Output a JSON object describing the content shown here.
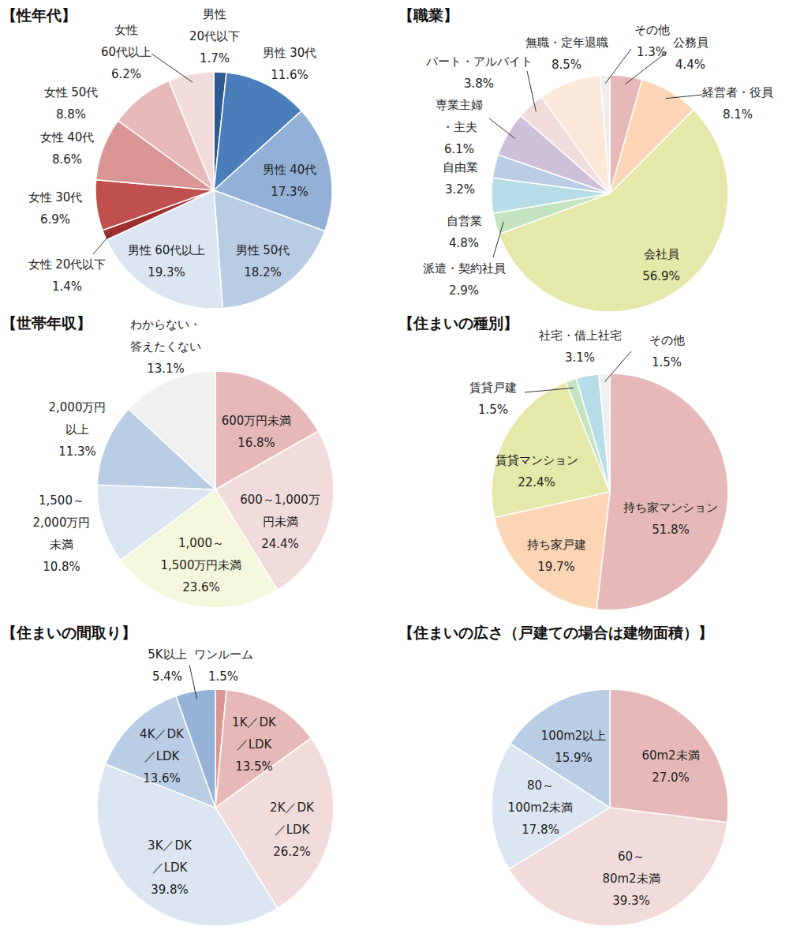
{
  "chart_data": [
    {
      "type": "pie",
      "title": "【性年代】",
      "categories": [
        "男性\n20代以下",
        "男性 30代",
        "男性 40代",
        "男性 50代",
        "男性 60代以上",
        "女性 20代以下",
        "女性 30代",
        "女性 40代",
        "女性 50代",
        "女性\n60代以上"
      ],
      "values": [
        1.7,
        11.6,
        17.3,
        18.2,
        19.3,
        1.4,
        6.9,
        8.6,
        8.8,
        6.2
      ],
      "value_labels": [
        "1.7%",
        "11.6%",
        "17.3%",
        "18.2%",
        "19.3%",
        "1.4%",
        "6.9%",
        "8.6%",
        "8.8%",
        "6.2%"
      ],
      "colors": [
        "#2f5a8f",
        "#4a7ebb",
        "#93b0d6",
        "#b8cce4",
        "#dce6f2",
        "#a03030",
        "#c0504d",
        "#d99694",
        "#e6b9b8",
        "#f2dcdb"
      ],
      "data_labels": true
    },
    {
      "type": "pie",
      "title": "【職業】",
      "categories": [
        "公務員",
        "経営者・役員",
        "会社員",
        "派遣・契約社員",
        "自営業",
        "自由業",
        "専業主婦\n・主夫",
        "パート・アルバイト",
        "無職・定年退職",
        "その他"
      ],
      "values": [
        4.4,
        8.1,
        56.9,
        2.9,
        4.8,
        3.2,
        6.1,
        3.8,
        8.5,
        1.3
      ],
      "value_labels": [
        "4.4%",
        "8.1%",
        "56.9%",
        "2.9%",
        "4.8%",
        "3.2%",
        "6.1%",
        "3.8%",
        "8.5%",
        "1.3%"
      ],
      "colors": [
        "#e6b9b8",
        "#fcd5b5",
        "#e4e8a8",
        "#c4e4c0",
        "#b7dde8",
        "#b9cde5",
        "#ccc0da",
        "#f2dcdb",
        "#fde9d9",
        "#eeeeee"
      ],
      "data_labels": true
    },
    {
      "type": "pie",
      "title": "【世帯年収】",
      "categories": [
        "600万円未満",
        "600～1,000万\n円未満",
        "1,000～\n1,500万円未満",
        "1,500～\n2,000万円\n未満",
        "2,000万円\n以上",
        "わからない・\n答えたくない"
      ],
      "values": [
        16.8,
        24.4,
        23.6,
        10.8,
        11.3,
        13.1
      ],
      "value_labels": [
        "16.8%",
        "24.4%",
        "23.6%",
        "10.8%",
        "11.3%",
        "13.1%"
      ],
      "colors": [
        "#e6b9b8",
        "#f2dcdb",
        "#f5f7dc",
        "#dce6f2",
        "#b9cde5",
        "#f0f0f0"
      ],
      "data_labels": true
    },
    {
      "type": "pie",
      "title": "【住まいの種別】",
      "categories": [
        "持ち家マンション",
        "持ち家戸建",
        "賃貸マンション",
        "賃貸戸建",
        "社宅・借上社宅",
        "その他"
      ],
      "values": [
        51.8,
        19.7,
        22.4,
        1.5,
        3.1,
        1.5
      ],
      "value_labels": [
        "51.8%",
        "19.7%",
        "22.4%",
        "1.5%",
        "3.1%",
        "1.5%"
      ],
      "colors": [
        "#e6b9b8",
        "#fcd5b5",
        "#e4e8a8",
        "#c4e4c0",
        "#b7dde8",
        "#f0f0f0"
      ],
      "data_labels": true
    },
    {
      "type": "pie",
      "title": "【住まいの間取り】",
      "categories": [
        "ワンルーム",
        "1K／DK\n／LDK",
        "2K／DK\n／LDK",
        "3K／DK\n／LDK",
        "4K／DK\n／LDK",
        "5K以上"
      ],
      "values": [
        1.5,
        13.5,
        26.2,
        39.8,
        13.6,
        5.4
      ],
      "value_labels": [
        "1.5%",
        "13.5%",
        "26.2%",
        "39.8%",
        "13.6%",
        "5.4%"
      ],
      "colors": [
        "#d99694",
        "#e6b9b8",
        "#f2dcdb",
        "#dce6f2",
        "#b9cde5",
        "#95b3d7"
      ],
      "data_labels": true
    },
    {
      "type": "pie",
      "title": "【住まいの広さ（戸建ての場合は建物面積）】",
      "categories": [
        "60m2未満",
        "60～\n80m2未満",
        "80～\n100m2未満",
        "100m2以上"
      ],
      "values": [
        27.0,
        39.3,
        17.8,
        15.9
      ],
      "value_labels": [
        "27.0%",
        "39.3%",
        "17.8%",
        "15.9%"
      ],
      "colors": [
        "#e6b9b8",
        "#f2dcdb",
        "#dce6f2",
        "#b9cde5"
      ],
      "data_labels": true
    }
  ]
}
